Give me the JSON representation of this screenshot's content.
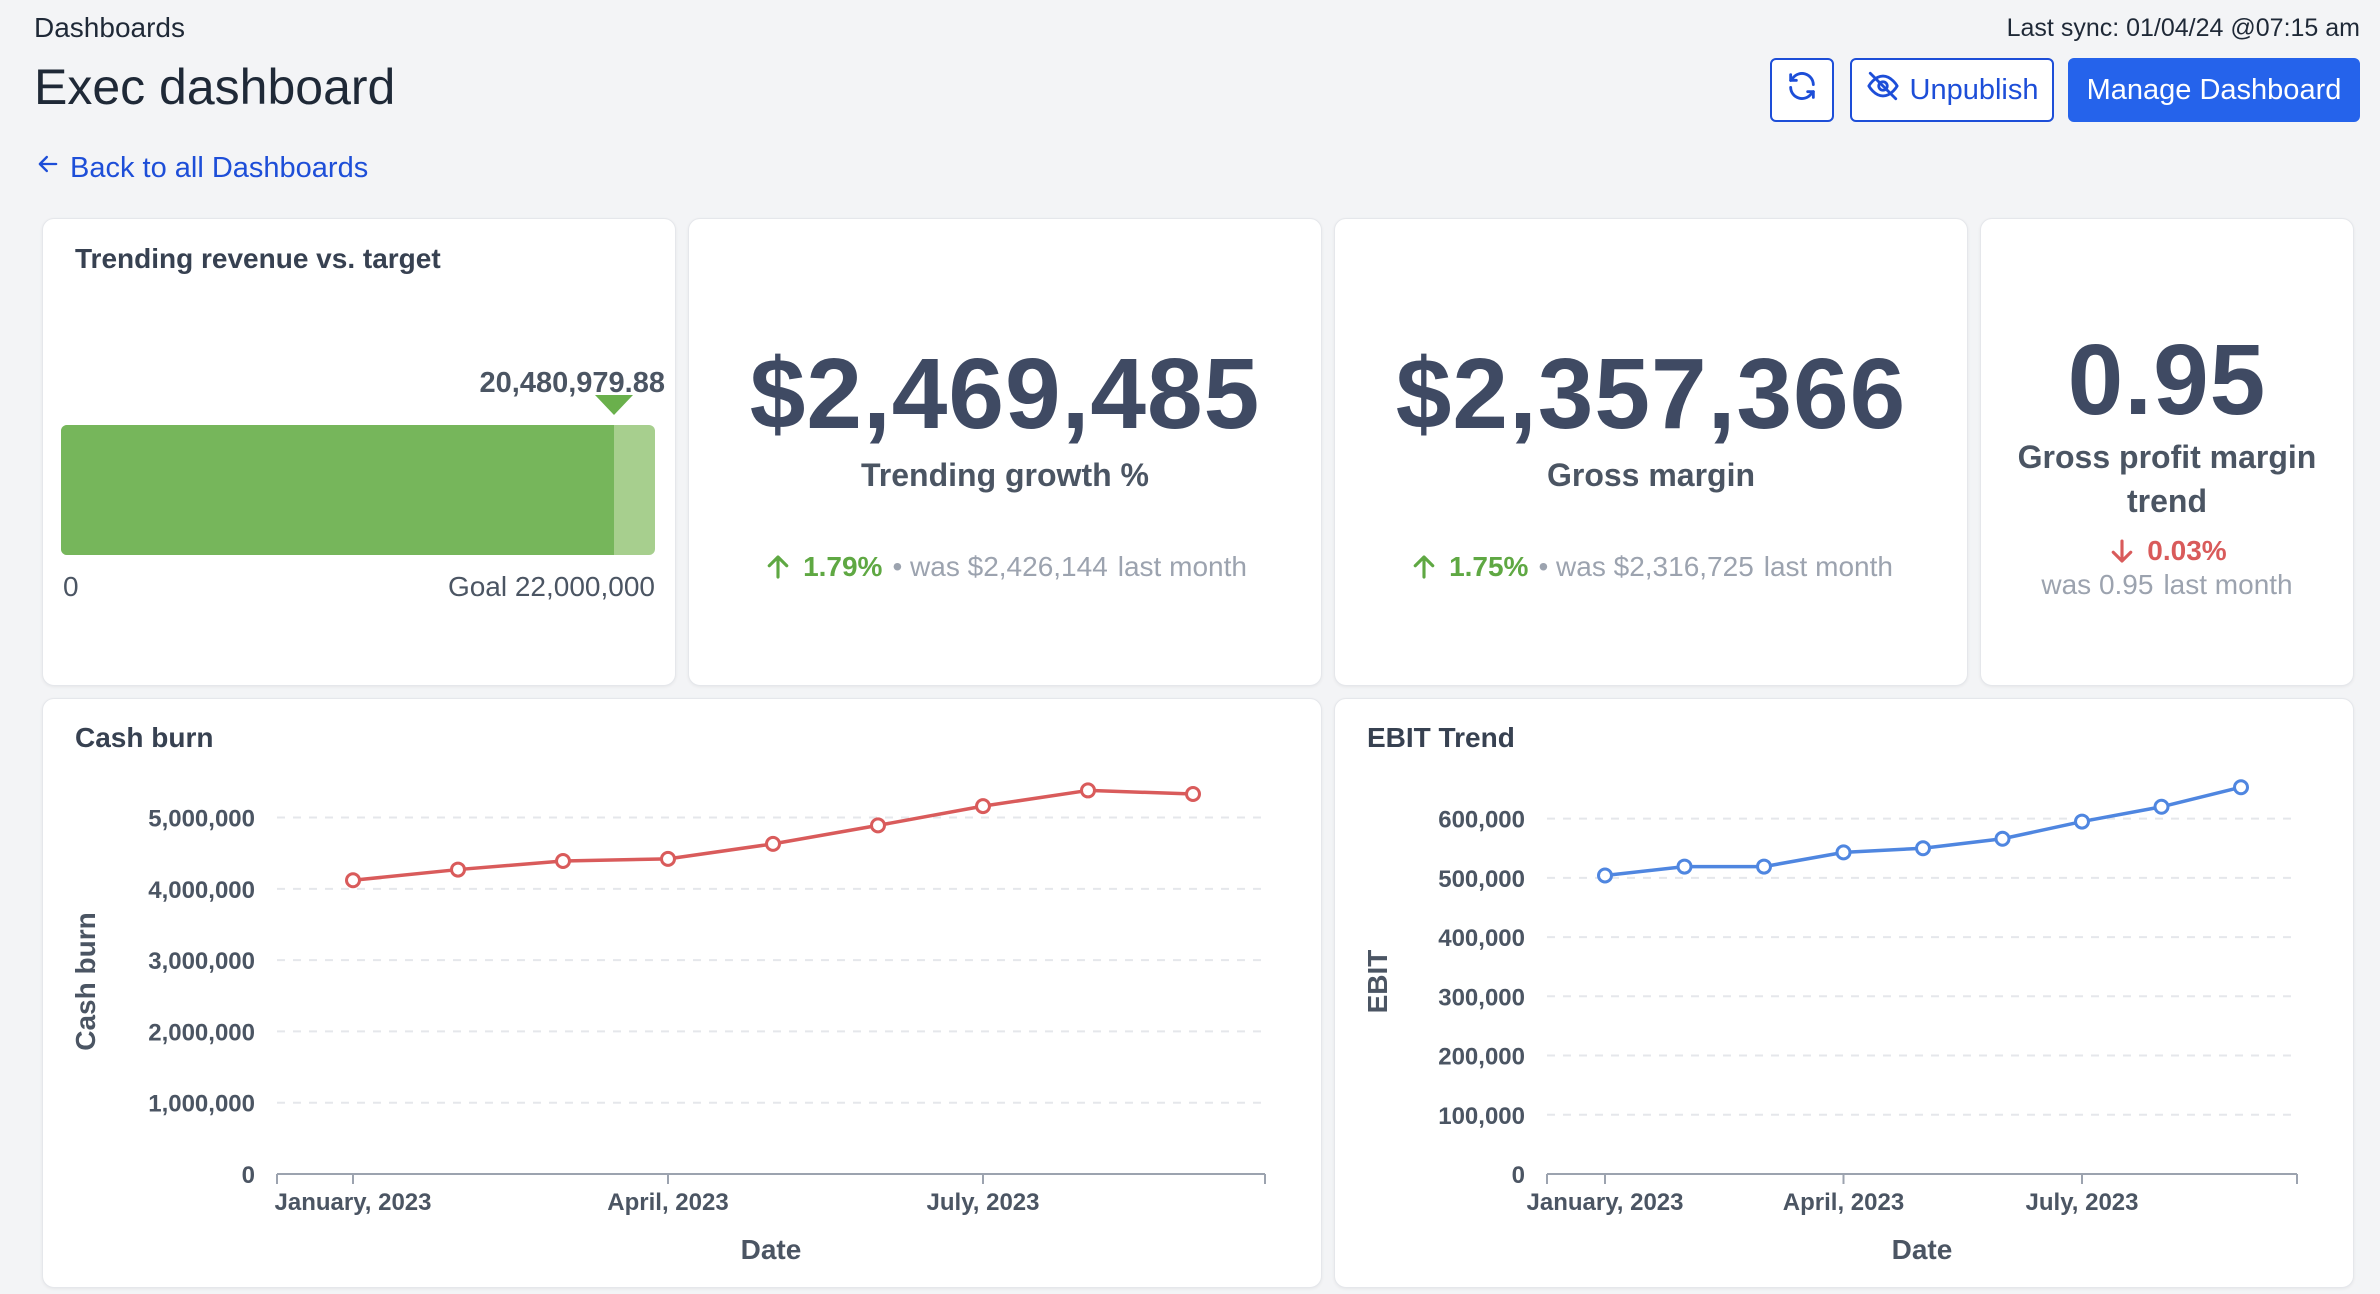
{
  "header": {
    "breadcrumb": "Dashboards",
    "title": "Exec dashboard",
    "back_link": "Back to all Dashboards",
    "last_sync": "Last sync: 01/04/24 @07:15 am",
    "unpublish_label": "Unpublish",
    "manage_label": "Manage Dashboard"
  },
  "gauge_card": {
    "title": "Trending revenue vs. target",
    "current_label": "20,480,979.88",
    "current": 20480979.88,
    "goal": 22000000,
    "min_label": "0",
    "goal_label": "Goal 22,000,000"
  },
  "kpis": [
    {
      "value": "$2,469,485",
      "label": "Trending growth %",
      "delta": "1.79%",
      "direction": "up",
      "was": "• was $2,426,144",
      "period": "last month"
    },
    {
      "value": "$2,357,366",
      "label": "Gross margin",
      "delta": "1.75%",
      "direction": "up",
      "was": "• was $2,316,725",
      "period": "last month"
    },
    {
      "value": "0.95",
      "label_line1": "Gross profit margin",
      "label_line2": "trend",
      "delta": "0.03%",
      "direction": "down",
      "was": "was 0.95",
      "period": "last month"
    }
  ],
  "colors": {
    "accent": "#2563eb",
    "up": "#5fa843",
    "down": "#d95b5b",
    "gauge_fill": "#76b65b",
    "cash_line": "#d95b5b",
    "ebit_line": "#4f86e0"
  },
  "chart_data": [
    {
      "type": "line",
      "title": "Cash burn",
      "xlabel": "Date",
      "ylabel": "Cash burn",
      "x": [
        "January, 2023",
        "February, 2023",
        "March, 2023",
        "April, 2023",
        "May, 2023",
        "June, 2023",
        "July, 2023",
        "August, 2023",
        "September, 2023"
      ],
      "x_tick_labels": [
        "January, 2023",
        "April, 2023",
        "July, 2023"
      ],
      "x_tick_index": [
        0,
        3,
        6
      ],
      "values": [
        4120000,
        4270000,
        4390000,
        4420000,
        4630000,
        4890000,
        5160000,
        5380000,
        5330000
      ],
      "yticks": [
        0,
        1000000,
        2000000,
        3000000,
        4000000,
        5000000
      ],
      "ytick_labels": [
        "0",
        "1,000,000",
        "2,000,000",
        "3,000,000",
        "4,000,000",
        "5,000,000"
      ],
      "ylim": [
        0,
        5400000
      ]
    },
    {
      "type": "line",
      "title": "EBIT Trend",
      "xlabel": "Date",
      "ylabel": "EBIT",
      "x": [
        "January, 2023",
        "February, 2023",
        "March, 2023",
        "April, 2023",
        "May, 2023",
        "June, 2023",
        "July, 2023",
        "August, 2023",
        "September, 2023"
      ],
      "x_tick_labels": [
        "January, 2023",
        "April, 2023",
        "July, 2023"
      ],
      "x_tick_index": [
        0,
        3,
        6
      ],
      "values": [
        504000,
        519000,
        519000,
        543000,
        550000,
        566000,
        595000,
        620000,
        653000
      ],
      "yticks": [
        0,
        100000,
        200000,
        300000,
        400000,
        500000,
        600000
      ],
      "ytick_labels": [
        "0",
        "100,000",
        "200,000",
        "300,000",
        "400,000",
        "500,000",
        "600,000"
      ],
      "ylim": [
        0,
        650000
      ]
    }
  ]
}
